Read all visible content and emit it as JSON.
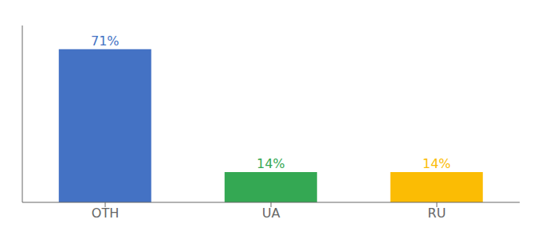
{
  "chart_data": {
    "type": "bar",
    "categories": [
      "OTH",
      "UA",
      "RU"
    ],
    "values": [
      71,
      14,
      14
    ],
    "value_labels": [
      "71%",
      "14%",
      "14%"
    ],
    "data_labels": true,
    "colors": [
      "#4472C4",
      "#34A853",
      "#FBBC04"
    ],
    "ylim": [
      0,
      82
    ],
    "tick_labels": "x",
    "grid": false
  }
}
